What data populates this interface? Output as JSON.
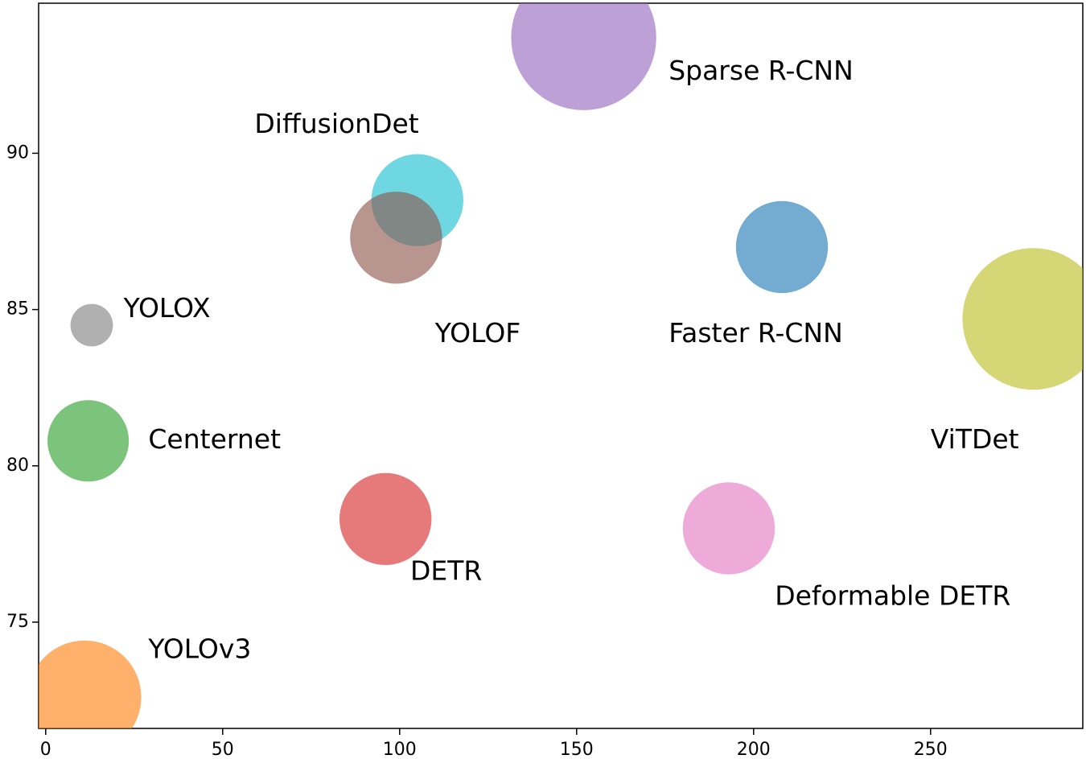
{
  "chart_data": {
    "type": "scatter",
    "title": "",
    "xlabel": "",
    "ylabel": "",
    "xlim": [
      -2,
      293
    ],
    "ylim": [
      71.6,
      94.8
    ],
    "x_ticks": [
      0,
      50,
      100,
      150,
      200,
      250
    ],
    "y_ticks": [
      75,
      80,
      85,
      90
    ],
    "grid": false,
    "points": [
      {
        "name": "Sparse R-CNN",
        "x": 152,
        "y": 93.7,
        "size": 41,
        "color": "#9467bd"
      },
      {
        "name": "DiffusionDet",
        "x": 105,
        "y": 88.5,
        "size": 26,
        "color": "#17becf"
      },
      {
        "name": "YOLOF",
        "x": 99,
        "y": 87.3,
        "size": 26,
        "color": "#8c564b"
      },
      {
        "name": "Faster R-CNN",
        "x": 208,
        "y": 87.0,
        "size": 26,
        "color": "#1f77b4"
      },
      {
        "name": "ViTDet",
        "x": 279,
        "y": 84.7,
        "size": 40,
        "color": "#bcbd22"
      },
      {
        "name": "YOLOX",
        "x": 13,
        "y": 84.5,
        "size": 12,
        "color": "#7f7f7f"
      },
      {
        "name": "Centernet",
        "x": 12,
        "y": 80.8,
        "size": 23,
        "color": "#2ca02c"
      },
      {
        "name": "DETR",
        "x": 96,
        "y": 78.3,
        "size": 26,
        "color": "#d62728"
      },
      {
        "name": "Deformable DETR",
        "x": 193,
        "y": 78.0,
        "size": 26,
        "color": "#e377c2"
      },
      {
        "name": "YOLOv3",
        "x": 11,
        "y": 72.6,
        "size": 32,
        "color": "#ff7f0e"
      }
    ],
    "annotations": [
      {
        "text": "Sparse R-CNN",
        "x": 176,
        "y": 92.6
      },
      {
        "text": "DiffusionDet",
        "x": 59,
        "y": 90.9
      },
      {
        "text": "YOLOF",
        "x": 110,
        "y": 84.2
      },
      {
        "text": "Faster R-CNN",
        "x": 176,
        "y": 84.2
      },
      {
        "text": "ViTDet",
        "x": 250,
        "y": 80.8
      },
      {
        "text": "YOLOX",
        "x": 22,
        "y": 85.0
      },
      {
        "text": "Centernet",
        "x": 29,
        "y": 80.8
      },
      {
        "text": "DETR",
        "x": 103,
        "y": 76.6
      },
      {
        "text": "Deformable DETR",
        "x": 206,
        "y": 75.8
      },
      {
        "text": "YOLOv3",
        "x": 29,
        "y": 74.1
      }
    ]
  }
}
